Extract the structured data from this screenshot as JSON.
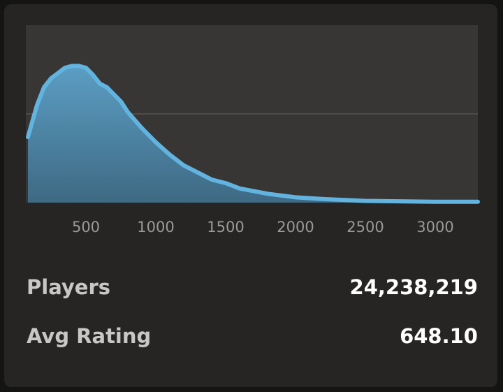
{
  "chart_data": {
    "type": "area",
    "x": [
      85,
      150,
      200,
      250,
      300,
      350,
      400,
      450,
      500,
      550,
      600,
      650,
      700,
      750,
      800,
      900,
      1000,
      1100,
      1200,
      1300,
      1400,
      1500,
      1600,
      1800,
      2000,
      2200,
      2500,
      3000,
      3305
    ],
    "values": [
      0.37,
      0.55,
      0.65,
      0.7,
      0.73,
      0.76,
      0.77,
      0.77,
      0.76,
      0.72,
      0.67,
      0.65,
      0.61,
      0.57,
      0.51,
      0.42,
      0.34,
      0.27,
      0.21,
      0.17,
      0.13,
      0.11,
      0.08,
      0.05,
      0.03,
      0.02,
      0.01,
      0.005,
      0.005
    ],
    "color": "#62b4e0",
    "xlim": [
      85,
      3305
    ],
    "xticks": [
      500,
      1000,
      1500,
      2000,
      2500,
      3000
    ],
    "ylim": [
      0,
      1
    ],
    "ygrid": [
      0.5
    ]
  },
  "stats": [
    {
      "label": "Players",
      "value": "24,238,219"
    },
    {
      "label": "Avg Rating",
      "value": "648.10"
    }
  ]
}
